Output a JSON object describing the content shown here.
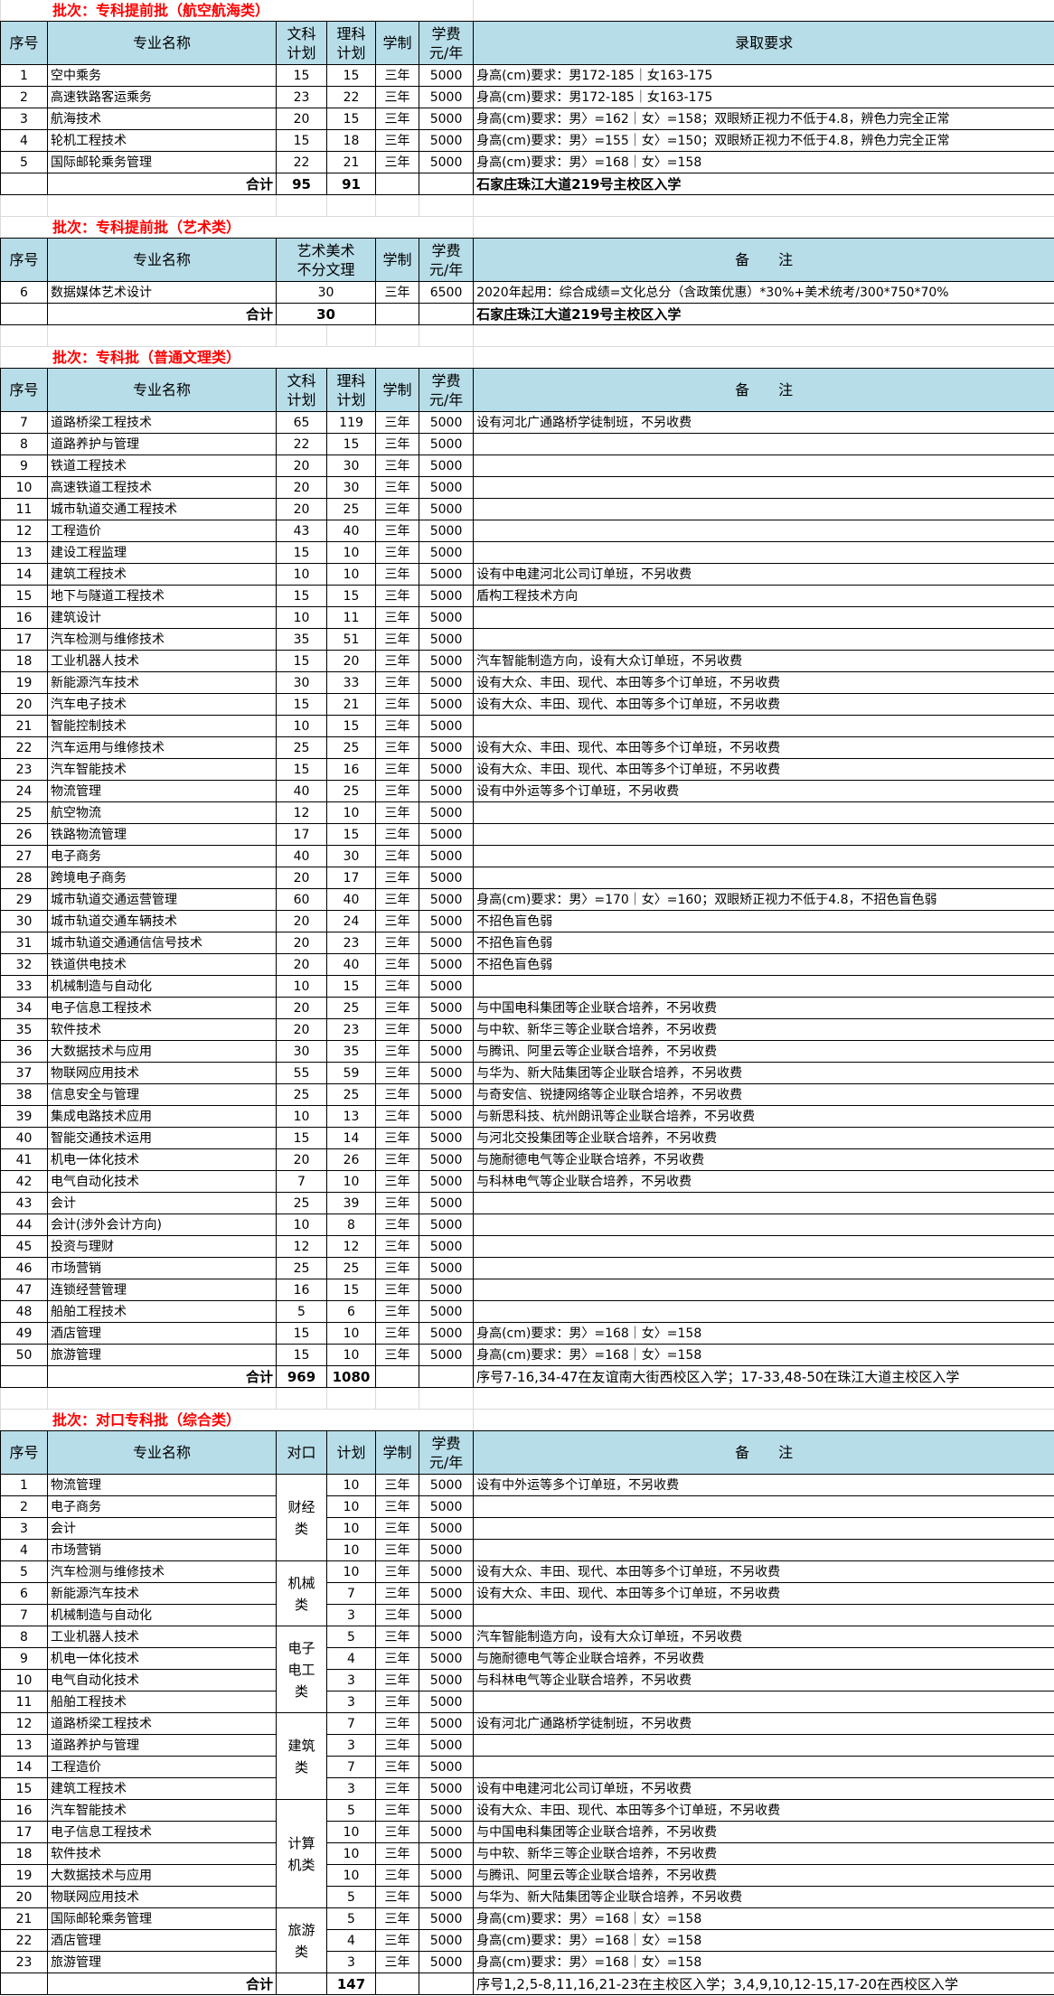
{
  "colors": {
    "header_bg": "#b7dde8",
    "title": "#ff0000"
  },
  "sections": [
    {
      "title": "批次：专科提前批（航空航海类）",
      "headers": [
        "序号",
        "专业名称",
        "文科\n计划",
        "理科\n计划",
        "学制",
        "学费\n元/年",
        "录取要求"
      ],
      "rows": [
        [
          "1",
          "空中乘务",
          "15",
          "15",
          "三年",
          "5000",
          "身高(cm)要求：男172-185｜女163-175"
        ],
        [
          "2",
          "高速铁路客运乘务",
          "23",
          "22",
          "三年",
          "5000",
          "身高(cm)要求：男172-185｜女163-175"
        ],
        [
          "3",
          "航海技术",
          "20",
          "15",
          "三年",
          "5000",
          "身高(cm)要求：男〉=162｜女〉=158；双眼矫正视力不低于4.8，辨色力完全正常"
        ],
        [
          "4",
          "轮机工程技术",
          "15",
          "18",
          "三年",
          "5000",
          "身高(cm)要求：男〉=155｜女〉=150；双眼矫正视力不低于4.8，辨色力完全正常"
        ],
        [
          "5",
          "国际邮轮乘务管理",
          "22",
          "21",
          "三年",
          "5000",
          "身高(cm)要求：男〉=168｜女〉=158"
        ]
      ],
      "total": [
        "",
        "合计",
        "95",
        "91",
        "",
        "",
        "石家庄珠江大道219号主校区入学"
      ]
    },
    {
      "title": "批次：专科提前批（艺术类）",
      "headers": [
        "序号",
        "专业名称",
        "艺术美术\n不分文理",
        "学制",
        "学费\n元/年",
        "备　　注"
      ],
      "merged_plan": true,
      "rows": [
        [
          "6",
          "数据媒体艺术设计",
          "30",
          "三年",
          "6500",
          "2020年起用：综合成绩=文化总分（含政策优惠）*30%+美术统考/300*750*70%"
        ]
      ],
      "total": [
        "",
        "合计",
        "30",
        "",
        "",
        "石家庄珠江大道219号主校区入学"
      ]
    },
    {
      "title": "批次：专科批（普通文理类）",
      "headers": [
        "序号",
        "专业名称",
        "文科\n计划",
        "理科\n计划",
        "学制",
        "学费\n元/年",
        "备　　注"
      ],
      "rows": [
        [
          "7",
          "道路桥梁工程技术",
          "65",
          "119",
          "三年",
          "5000",
          "设有河北广通路桥学徒制班，不另收费"
        ],
        [
          "8",
          "道路养护与管理",
          "22",
          "15",
          "三年",
          "5000",
          ""
        ],
        [
          "9",
          "铁道工程技术",
          "20",
          "30",
          "三年",
          "5000",
          ""
        ],
        [
          "10",
          "高速铁道工程技术",
          "20",
          "30",
          "三年",
          "5000",
          ""
        ],
        [
          "11",
          "城市轨道交通工程技术",
          "20",
          "25",
          "三年",
          "5000",
          ""
        ],
        [
          "12",
          "工程造价",
          "43",
          "40",
          "三年",
          "5000",
          ""
        ],
        [
          "13",
          "建设工程监理",
          "15",
          "10",
          "三年",
          "5000",
          ""
        ],
        [
          "14",
          "建筑工程技术",
          "10",
          "10",
          "三年",
          "5000",
          "设有中电建河北公司订单班，不另收费"
        ],
        [
          "15",
          "地下与隧道工程技术",
          "15",
          "15",
          "三年",
          "5000",
          "盾构工程技术方向"
        ],
        [
          "16",
          "建筑设计",
          "10",
          "11",
          "三年",
          "5000",
          ""
        ],
        [
          "17",
          "汽车检测与维修技术",
          "35",
          "51",
          "三年",
          "5000",
          ""
        ],
        [
          "18",
          "工业机器人技术",
          "15",
          "20",
          "三年",
          "5000",
          "汽车智能制造方向，设有大众订单班，不另收费"
        ],
        [
          "19",
          "新能源汽车技术",
          "30",
          "33",
          "三年",
          "5000",
          "设有大众、丰田、现代、本田等多个订单班，不另收费"
        ],
        [
          "20",
          "汽车电子技术",
          "15",
          "21",
          "三年",
          "5000",
          "设有大众、丰田、现代、本田等多个订单班，不另收费"
        ],
        [
          "21",
          "智能控制技术",
          "10",
          "15",
          "三年",
          "5000",
          ""
        ],
        [
          "22",
          "汽车运用与维修技术",
          "25",
          "25",
          "三年",
          "5000",
          "设有大众、丰田、现代、本田等多个订单班，不另收费"
        ],
        [
          "23",
          "汽车智能技术",
          "15",
          "16",
          "三年",
          "5000",
          "设有大众、丰田、现代、本田等多个订单班，不另收费"
        ],
        [
          "24",
          "物流管理",
          "40",
          "25",
          "三年",
          "5000",
          "设有中外运等多个订单班，不另收费"
        ],
        [
          "25",
          "航空物流",
          "12",
          "10",
          "三年",
          "5000",
          ""
        ],
        [
          "26",
          "铁路物流管理",
          "17",
          "15",
          "三年",
          "5000",
          ""
        ],
        [
          "27",
          "电子商务",
          "40",
          "30",
          "三年",
          "5000",
          ""
        ],
        [
          "28",
          "跨境电子商务",
          "20",
          "17",
          "三年",
          "5000",
          ""
        ],
        [
          "29",
          "城市轨道交通运营管理",
          "60",
          "40",
          "三年",
          "5000",
          "身高(cm)要求：男〉=170｜女〉=160；双眼矫正视力不低于4.8，不招色盲色弱"
        ],
        [
          "30",
          "城市轨道交通车辆技术",
          "20",
          "24",
          "三年",
          "5000",
          "不招色盲色弱"
        ],
        [
          "31",
          "城市轨道交通通信信号技术",
          "20",
          "23",
          "三年",
          "5000",
          "不招色盲色弱"
        ],
        [
          "32",
          "铁道供电技术",
          "20",
          "40",
          "三年",
          "5000",
          "不招色盲色弱"
        ],
        [
          "33",
          "机械制造与自动化",
          "10",
          "15",
          "三年",
          "5000",
          ""
        ],
        [
          "34",
          "电子信息工程技术",
          "20",
          "25",
          "三年",
          "5000",
          "与中国电科集团等企业联合培养，不另收费"
        ],
        [
          "35",
          "软件技术",
          "20",
          "23",
          "三年",
          "5000",
          "与中软、新华三等企业联合培养，不另收费"
        ],
        [
          "36",
          "大数据技术与应用",
          "30",
          "35",
          "三年",
          "5000",
          "与腾讯、阿里云等企业联合培养，不另收费"
        ],
        [
          "37",
          "物联网应用技术",
          "55",
          "59",
          "三年",
          "5000",
          "与华为、新大陆集团等企业联合培养，不另收费"
        ],
        [
          "38",
          "信息安全与管理",
          "25",
          "25",
          "三年",
          "5000",
          "与奇安信、锐捷网络等企业联合培养，不另收费"
        ],
        [
          "39",
          "集成电路技术应用",
          "10",
          "13",
          "三年",
          "5000",
          "与新思科技、杭州朗讯等企业联合培养，不另收费"
        ],
        [
          "40",
          "智能交通技术运用",
          "15",
          "14",
          "三年",
          "5000",
          "与河北交投集团等企业联合培养，不另收费"
        ],
        [
          "41",
          "机电一体化技术",
          "20",
          "26",
          "三年",
          "5000",
          "与施耐德电气等企业联合培养，不另收费"
        ],
        [
          "42",
          "电气自动化技术",
          "7",
          "10",
          "三年",
          "5000",
          "与科林电气等企业联合培养，不另收费"
        ],
        [
          "43",
          "会计",
          "25",
          "39",
          "三年",
          "5000",
          ""
        ],
        [
          "44",
          "会计(涉外会计方向)",
          "10",
          "8",
          "三年",
          "5000",
          ""
        ],
        [
          "45",
          "投资与理财",
          "12",
          "12",
          "三年",
          "5000",
          ""
        ],
        [
          "46",
          "市场营销",
          "25",
          "25",
          "三年",
          "5000",
          ""
        ],
        [
          "47",
          "连锁经营管理",
          "16",
          "15",
          "三年",
          "5000",
          ""
        ],
        [
          "48",
          "船舶工程技术",
          "5",
          "6",
          "三年",
          "5000",
          ""
        ],
        [
          "49",
          "酒店管理",
          "15",
          "10",
          "三年",
          "5000",
          "身高(cm)要求：男〉=168｜女〉=158"
        ],
        [
          "50",
          "旅游管理",
          "15",
          "10",
          "三年",
          "5000",
          "身高(cm)要求：男〉=168｜女〉=158"
        ]
      ],
      "total": [
        "",
        "合计",
        "969",
        "1080",
        "",
        "",
        "序号7-16,34-47在友谊南大街西校区入学；17-33,48-50在珠江大道主校区入学"
      ]
    },
    {
      "title": "批次：对口专科批（综合类）",
      "headers": [
        "序号",
        "专业名称",
        "对口",
        "计划",
        "学制",
        "学费\n元/年",
        "备　　注"
      ],
      "grouped": true,
      "groups": [
        {
          "label": "财经\n类",
          "rows": [
            [
              "1",
              "物流管理",
              "10",
              "三年",
              "5000",
              "设有中外运等多个订单班，不另收费"
            ],
            [
              "2",
              "电子商务",
              "10",
              "三年",
              "5000",
              ""
            ],
            [
              "3",
              "会计",
              "10",
              "三年",
              "5000",
              ""
            ],
            [
              "4",
              "市场营销",
              "10",
              "三年",
              "5000",
              ""
            ]
          ]
        },
        {
          "label": "机械\n类",
          "rows": [
            [
              "5",
              "汽车检测与维修技术",
              "10",
              "三年",
              "5000",
              "设有大众、丰田、现代、本田等多个订单班，不另收费"
            ],
            [
              "6",
              "新能源汽车技术",
              "7",
              "三年",
              "5000",
              "设有大众、丰田、现代、本田等多个订单班，不另收费"
            ],
            [
              "7",
              "机械制造与自动化",
              "3",
              "三年",
              "5000",
              ""
            ]
          ]
        },
        {
          "label": "电子\n电工\n类",
          "rows": [
            [
              "8",
              "工业机器人技术",
              "5",
              "三年",
              "5000",
              "汽车智能制造方向，设有大众订单班，不另收费"
            ],
            [
              "9",
              "机电一体化技术",
              "4",
              "三年",
              "5000",
              "与施耐德电气等企业联合培养，不另收费"
            ],
            [
              "10",
              "电气自动化技术",
              "3",
              "三年",
              "5000",
              "与科林电气等企业联合培养，不另收费"
            ],
            [
              "11",
              "船舶工程技术",
              "3",
              "三年",
              "5000",
              ""
            ]
          ]
        },
        {
          "label": "建筑\n类",
          "rows": [
            [
              "12",
              "道路桥梁工程技术",
              "7",
              "三年",
              "5000",
              "设有河北广通路桥学徒制班，不另收费"
            ],
            [
              "13",
              "道路养护与管理",
              "3",
              "三年",
              "5000",
              ""
            ],
            [
              "14",
              "工程造价",
              "7",
              "三年",
              "5000",
              ""
            ],
            [
              "15",
              "建筑工程技术",
              "3",
              "三年",
              "5000",
              "设有中电建河北公司订单班，不另收费"
            ]
          ]
        },
        {
          "label": "计算\n机类",
          "rows": [
            [
              "16",
              "汽车智能技术",
              "5",
              "三年",
              "5000",
              "设有大众、丰田、现代、本田等多个订单班，不另收费"
            ],
            [
              "17",
              "电子信息工程技术",
              "10",
              "三年",
              "5000",
              "与中国电科集团等企业联合培养，不另收费"
            ],
            [
              "18",
              "软件技术",
              "10",
              "三年",
              "5000",
              "与中软、新华三等企业联合培养，不另收费"
            ],
            [
              "19",
              "大数据技术与应用",
              "10",
              "三年",
              "5000",
              "与腾讯、阿里云等企业联合培养，不另收费"
            ],
            [
              "20",
              "物联网应用技术",
              "5",
              "三年",
              "5000",
              "与华为、新大陆集团等企业联合培养，不另收费"
            ]
          ]
        },
        {
          "label": "旅游\n类",
          "rows": [
            [
              "21",
              "国际邮轮乘务管理",
              "5",
              "三年",
              "5000",
              "身高(cm)要求：男〉=168｜女〉=158"
            ],
            [
              "22",
              "酒店管理",
              "4",
              "三年",
              "5000",
              "身高(cm)要求：男〉=168｜女〉=158"
            ],
            [
              "23",
              "旅游管理",
              "3",
              "三年",
              "5000",
              "身高(cm)要求：男〉=168｜女〉=158"
            ]
          ]
        }
      ],
      "total": [
        "",
        "合计",
        "",
        "147",
        "",
        "",
        "序号1,2,5-8,11,16,21-23在主校区入学；3,4,9,10,12-15,17-20在西校区入学"
      ]
    }
  ]
}
